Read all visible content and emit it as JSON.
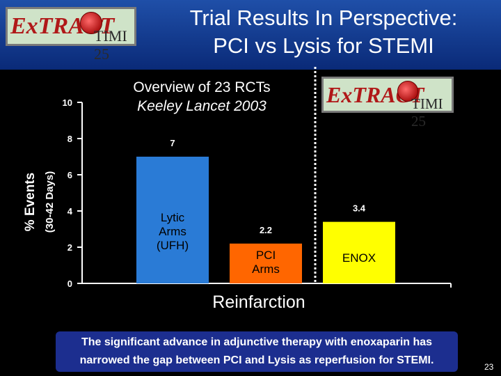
{
  "header": {
    "title_line1": "Trial Results In Perspective:",
    "title_line2": "PCI vs Lysis for STEMI",
    "logo_ex": "ExTRACT",
    "logo_timi": "TIMI 25"
  },
  "overview": {
    "line1": "Overview  of 23 RCTs",
    "line2": "Keeley Lancet 2003"
  },
  "colors": {
    "background": "#000000",
    "header": "#1f4fa8",
    "lytic_bar": "#2a7bd6",
    "pci_bar": "#ff6600",
    "enox_bar": "#ffff00",
    "note_box": "#1c2e8f"
  },
  "chart_data": {
    "type": "bar",
    "ylabel": "% Events",
    "ylabel_sub": "(30-42 Days)",
    "xlabel": "Reinfarction",
    "ylim": [
      0,
      10
    ],
    "yticks": [
      "0",
      "2",
      "4",
      "6",
      "8",
      "10"
    ],
    "categories": [
      "Lytic Arms (UFH)",
      "PCI Arms",
      "ENOX"
    ],
    "series": [
      {
        "values": [
          7,
          2.2,
          3.4
        ],
        "value_labels": [
          "7",
          "2.2",
          "3.4"
        ],
        "bar_labels": [
          [
            "Lytic",
            "Arms",
            "(UFH)"
          ],
          [
            "PCI",
            "Arms"
          ],
          [
            "ENOX"
          ]
        ]
      }
    ]
  },
  "note": {
    "line1": "The significant advance in adjunctive therapy with enoxaparin has",
    "line2": "narrowed the gap between PCI and Lysis as reperfusion for STEMI."
  },
  "page_number": "23"
}
